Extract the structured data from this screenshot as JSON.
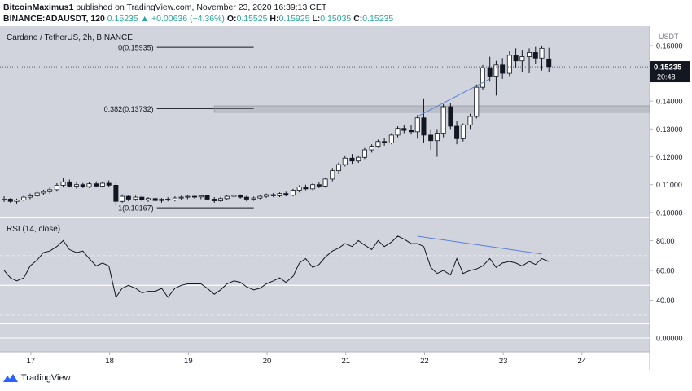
{
  "header": {
    "author": "BitcoinMaximus1",
    "published_text": "published on TradingView.com, November 23, 2020 16:39:13 CET",
    "symbol": "BINANCE:ADAUSDT, 120",
    "price": "0.15235",
    "arrow": "▲",
    "change": "+0.00636 (+4.36%)",
    "o_label": "O:",
    "o_value": "0.15525",
    "h_label": "H:",
    "h_value": "0.15925",
    "l_label": "L:",
    "l_value": "0.15035",
    "c_label": "C:",
    "c_value": "0.15235"
  },
  "footer": {
    "brand": "TradingView"
  },
  "colors": {
    "panel_bg": "#d1d4dc",
    "candle_up": "#ffffff",
    "candle_down": "#131722",
    "trend": "#5b7fd6",
    "rsi_line": "#131722"
  },
  "chart_data": [
    {
      "type": "candlestick",
      "title": "Cardano / TetherUS, 2h, BINANCE",
      "price_axis": {
        "label": "USDT",
        "ticks": [
          "0.16000",
          "0.15000",
          "0.14000",
          "0.13000",
          "0.12000",
          "0.11000",
          "0.10000"
        ],
        "ylim": [
          0.0985,
          0.167
        ]
      },
      "x_ticks": [
        "17",
        "18",
        "19",
        "20",
        "21",
        "22",
        "23",
        "24"
      ],
      "last_price": "0.15235",
      "countdown": "20:48",
      "fib_levels": [
        {
          "label": "0(0.15935)",
          "value": 0.15935
        },
        {
          "label": "0.382(0.13732)",
          "value": 0.13732
        },
        {
          "label": "1(0.10167)",
          "value": 0.10167
        }
      ],
      "candles": [
        {
          "x": 16.66,
          "o": 0.1045,
          "h": 0.1058,
          "l": 0.1038,
          "c": 0.1048
        },
        {
          "x": 16.74,
          "o": 0.1048,
          "h": 0.1052,
          "l": 0.1035,
          "c": 0.104
        },
        {
          "x": 16.82,
          "o": 0.104,
          "h": 0.105,
          "l": 0.1032,
          "c": 0.1045
        },
        {
          "x": 16.91,
          "o": 0.1045,
          "h": 0.1062,
          "l": 0.104,
          "c": 0.1055
        },
        {
          "x": 16.99,
          "o": 0.1055,
          "h": 0.1068,
          "l": 0.1048,
          "c": 0.106
        },
        {
          "x": 17.08,
          "o": 0.106,
          "h": 0.1078,
          "l": 0.1055,
          "c": 0.107
        },
        {
          "x": 17.16,
          "o": 0.107,
          "h": 0.1082,
          "l": 0.1062,
          "c": 0.1075
        },
        {
          "x": 17.24,
          "o": 0.1075,
          "h": 0.109,
          "l": 0.1068,
          "c": 0.1082
        },
        {
          "x": 17.33,
          "o": 0.1082,
          "h": 0.1105,
          "l": 0.1075,
          "c": 0.1098
        },
        {
          "x": 17.41,
          "o": 0.1098,
          "h": 0.1125,
          "l": 0.109,
          "c": 0.111
        },
        {
          "x": 17.49,
          "o": 0.111,
          "h": 0.1118,
          "l": 0.109,
          "c": 0.1095
        },
        {
          "x": 17.58,
          "o": 0.1095,
          "h": 0.1108,
          "l": 0.1085,
          "c": 0.11
        },
        {
          "x": 17.66,
          "o": 0.11,
          "h": 0.1106,
          "l": 0.1088,
          "c": 0.1093
        },
        {
          "x": 17.74,
          "o": 0.1093,
          "h": 0.111,
          "l": 0.1088,
          "c": 0.1103
        },
        {
          "x": 17.83,
          "o": 0.1103,
          "h": 0.1112,
          "l": 0.109,
          "c": 0.1095
        },
        {
          "x": 17.91,
          "o": 0.1095,
          "h": 0.1112,
          "l": 0.109,
          "c": 0.1105
        },
        {
          "x": 17.99,
          "o": 0.1105,
          "h": 0.1115,
          "l": 0.109,
          "c": 0.1098
        },
        {
          "x": 18.08,
          "o": 0.1098,
          "h": 0.1108,
          "l": 0.1025,
          "c": 0.104
        },
        {
          "x": 18.16,
          "o": 0.104,
          "h": 0.1065,
          "l": 0.1035,
          "c": 0.1058
        },
        {
          "x": 18.24,
          "o": 0.1058,
          "h": 0.1062,
          "l": 0.104,
          "c": 0.1048
        },
        {
          "x": 18.33,
          "o": 0.1048,
          "h": 0.106,
          "l": 0.1042,
          "c": 0.1055
        },
        {
          "x": 18.41,
          "o": 0.1055,
          "h": 0.106,
          "l": 0.104,
          "c": 0.1045
        },
        {
          "x": 18.49,
          "o": 0.1045,
          "h": 0.1055,
          "l": 0.1038,
          "c": 0.105
        },
        {
          "x": 18.58,
          "o": 0.105,
          "h": 0.1055,
          "l": 0.104,
          "c": 0.1043
        },
        {
          "x": 18.66,
          "o": 0.1043,
          "h": 0.1052,
          "l": 0.1035,
          "c": 0.1048
        },
        {
          "x": 18.74,
          "o": 0.1048,
          "h": 0.1055,
          "l": 0.104,
          "c": 0.1045
        },
        {
          "x": 18.83,
          "o": 0.1045,
          "h": 0.1058,
          "l": 0.104,
          "c": 0.1052
        },
        {
          "x": 18.91,
          "o": 0.1052,
          "h": 0.106,
          "l": 0.1045,
          "c": 0.1055
        },
        {
          "x": 18.99,
          "o": 0.1055,
          "h": 0.1062,
          "l": 0.1048,
          "c": 0.1058
        },
        {
          "x": 19.08,
          "o": 0.1058,
          "h": 0.1064,
          "l": 0.105,
          "c": 0.1056
        },
        {
          "x": 19.16,
          "o": 0.1056,
          "h": 0.1063,
          "l": 0.1048,
          "c": 0.106
        },
        {
          "x": 19.24,
          "o": 0.106,
          "h": 0.1063,
          "l": 0.1045,
          "c": 0.1048
        },
        {
          "x": 19.33,
          "o": 0.1048,
          "h": 0.1055,
          "l": 0.1035,
          "c": 0.1042
        },
        {
          "x": 19.41,
          "o": 0.1042,
          "h": 0.1056,
          "l": 0.1038,
          "c": 0.105
        },
        {
          "x": 19.49,
          "o": 0.105,
          "h": 0.1064,
          "l": 0.1045,
          "c": 0.1058
        },
        {
          "x": 19.58,
          "o": 0.1058,
          "h": 0.1068,
          "l": 0.1052,
          "c": 0.1062
        },
        {
          "x": 19.66,
          "o": 0.1062,
          "h": 0.1065,
          "l": 0.105,
          "c": 0.1055
        },
        {
          "x": 19.74,
          "o": 0.1055,
          "h": 0.106,
          "l": 0.104,
          "c": 0.1048
        },
        {
          "x": 19.83,
          "o": 0.1048,
          "h": 0.1057,
          "l": 0.1042,
          "c": 0.1052
        },
        {
          "x": 19.91,
          "o": 0.1052,
          "h": 0.1062,
          "l": 0.1048,
          "c": 0.1058
        },
        {
          "x": 19.99,
          "o": 0.1058,
          "h": 0.1068,
          "l": 0.1052,
          "c": 0.1064
        },
        {
          "x": 20.08,
          "o": 0.1064,
          "h": 0.107,
          "l": 0.1055,
          "c": 0.106
        },
        {
          "x": 20.16,
          "o": 0.106,
          "h": 0.1072,
          "l": 0.1055,
          "c": 0.1068
        },
        {
          "x": 20.24,
          "o": 0.1068,
          "h": 0.1075,
          "l": 0.1058,
          "c": 0.1062
        },
        {
          "x": 20.33,
          "o": 0.1062,
          "h": 0.1085,
          "l": 0.1058,
          "c": 0.108
        },
        {
          "x": 20.41,
          "o": 0.108,
          "h": 0.1098,
          "l": 0.1072,
          "c": 0.1092
        },
        {
          "x": 20.49,
          "o": 0.1092,
          "h": 0.11,
          "l": 0.108,
          "c": 0.1085
        },
        {
          "x": 20.58,
          "o": 0.1085,
          "h": 0.1105,
          "l": 0.108,
          "c": 0.11
        },
        {
          "x": 20.66,
          "o": 0.11,
          "h": 0.1108,
          "l": 0.1088,
          "c": 0.1095
        },
        {
          "x": 20.74,
          "o": 0.1095,
          "h": 0.1125,
          "l": 0.109,
          "c": 0.112
        },
        {
          "x": 20.83,
          "o": 0.112,
          "h": 0.116,
          "l": 0.1112,
          "c": 0.115
        },
        {
          "x": 20.91,
          "o": 0.115,
          "h": 0.118,
          "l": 0.114,
          "c": 0.1172
        },
        {
          "x": 20.99,
          "o": 0.1172,
          "h": 0.1205,
          "l": 0.1165,
          "c": 0.1195
        },
        {
          "x": 21.08,
          "o": 0.1195,
          "h": 0.121,
          "l": 0.1175,
          "c": 0.1185
        },
        {
          "x": 21.16,
          "o": 0.1185,
          "h": 0.1205,
          "l": 0.1178,
          "c": 0.1198
        },
        {
          "x": 21.24,
          "o": 0.1198,
          "h": 0.1232,
          "l": 0.1192,
          "c": 0.1225
        },
        {
          "x": 21.33,
          "o": 0.1225,
          "h": 0.1245,
          "l": 0.1215,
          "c": 0.1238
        },
        {
          "x": 21.41,
          "o": 0.1238,
          "h": 0.1262,
          "l": 0.1232,
          "c": 0.1255
        },
        {
          "x": 21.49,
          "o": 0.1255,
          "h": 0.1268,
          "l": 0.124,
          "c": 0.125
        },
        {
          "x": 21.58,
          "o": 0.125,
          "h": 0.1285,
          "l": 0.1245,
          "c": 0.1278
        },
        {
          "x": 21.66,
          "o": 0.1278,
          "h": 0.131,
          "l": 0.127,
          "c": 0.1302
        },
        {
          "x": 21.74,
          "o": 0.1302,
          "h": 0.1315,
          "l": 0.1285,
          "c": 0.1295
        },
        {
          "x": 21.83,
          "o": 0.1295,
          "h": 0.1315,
          "l": 0.128,
          "c": 0.129
        },
        {
          "x": 21.91,
          "o": 0.129,
          "h": 0.135,
          "l": 0.1265,
          "c": 0.134
        },
        {
          "x": 21.99,
          "o": 0.134,
          "h": 0.141,
          "l": 0.125,
          "c": 0.1278
        },
        {
          "x": 22.08,
          "o": 0.1278,
          "h": 0.13,
          "l": 0.1225,
          "c": 0.1258
        },
        {
          "x": 22.16,
          "o": 0.1258,
          "h": 0.13,
          "l": 0.12,
          "c": 0.1285
        },
        {
          "x": 22.24,
          "o": 0.1285,
          "h": 0.139,
          "l": 0.127,
          "c": 0.138
        },
        {
          "x": 22.33,
          "o": 0.138,
          "h": 0.1395,
          "l": 0.13,
          "c": 0.131
        },
        {
          "x": 22.41,
          "o": 0.131,
          "h": 0.133,
          "l": 0.1245,
          "c": 0.1265
        },
        {
          "x": 22.49,
          "o": 0.1265,
          "h": 0.132,
          "l": 0.1255,
          "c": 0.1315
        },
        {
          "x": 22.58,
          "o": 0.1315,
          "h": 0.1355,
          "l": 0.13,
          "c": 0.1345
        },
        {
          "x": 22.66,
          "o": 0.1345,
          "h": 0.146,
          "l": 0.1338,
          "c": 0.145
        },
        {
          "x": 22.74,
          "o": 0.145,
          "h": 0.153,
          "l": 0.144,
          "c": 0.152
        },
        {
          "x": 22.83,
          "o": 0.152,
          "h": 0.156,
          "l": 0.147,
          "c": 0.149
        },
        {
          "x": 22.91,
          "o": 0.149,
          "h": 0.1545,
          "l": 0.142,
          "c": 0.153
        },
        {
          "x": 22.99,
          "o": 0.153,
          "h": 0.1555,
          "l": 0.148,
          "c": 0.15
        },
        {
          "x": 23.08,
          "o": 0.15,
          "h": 0.158,
          "l": 0.149,
          "c": 0.1565
        },
        {
          "x": 23.16,
          "o": 0.1565,
          "h": 0.159,
          "l": 0.152,
          "c": 0.1545
        },
        {
          "x": 23.24,
          "o": 0.1545,
          "h": 0.1585,
          "l": 0.1505,
          "c": 0.156
        },
        {
          "x": 23.33,
          "o": 0.156,
          "h": 0.159,
          "l": 0.15,
          "c": 0.1575
        },
        {
          "x": 23.41,
          "o": 0.1575,
          "h": 0.1595,
          "l": 0.1535,
          "c": 0.1555
        },
        {
          "x": 23.49,
          "o": 0.1555,
          "h": 0.16,
          "l": 0.151,
          "c": 0.159
        },
        {
          "x": 23.58,
          "o": 0.1552,
          "h": 0.1592,
          "l": 0.1503,
          "c": 0.1524
        }
      ],
      "trend_line": {
        "x": [
          21.91,
          22.83
        ],
        "y": [
          0.1345,
          0.148
        ]
      }
    },
    {
      "type": "line",
      "title": "RSI (14, close)",
      "y_ticks": [
        "80.00",
        "60.00",
        "40.00"
      ],
      "ylim": [
        25,
        95
      ],
      "bands": [
        70,
        50,
        30
      ],
      "x": [
        16.66,
        16.74,
        16.82,
        16.91,
        16.99,
        17.08,
        17.16,
        17.24,
        17.33,
        17.41,
        17.49,
        17.58,
        17.66,
        17.74,
        17.83,
        17.91,
        17.99,
        18.08,
        18.16,
        18.24,
        18.33,
        18.41,
        18.49,
        18.58,
        18.66,
        18.74,
        18.83,
        18.91,
        18.99,
        19.08,
        19.16,
        19.24,
        19.33,
        19.41,
        19.49,
        19.58,
        19.66,
        19.74,
        19.83,
        19.91,
        19.99,
        20.08,
        20.16,
        20.24,
        20.33,
        20.41,
        20.49,
        20.58,
        20.66,
        20.74,
        20.83,
        20.91,
        20.99,
        21.08,
        21.16,
        21.24,
        21.33,
        21.41,
        21.49,
        21.58,
        21.66,
        21.74,
        21.83,
        21.91,
        21.99,
        22.08,
        22.16,
        22.24,
        22.33,
        22.41,
        22.49,
        22.58,
        22.66,
        22.74,
        22.83,
        22.91,
        22.99,
        23.08,
        23.16,
        23.24,
        23.33,
        23.41,
        23.49,
        23.58
      ],
      "values": [
        60,
        55,
        53,
        55,
        63,
        67,
        72,
        73,
        76,
        80,
        74,
        72,
        73,
        68,
        63,
        65,
        63,
        42,
        48,
        50,
        48,
        45,
        46,
        46,
        48,
        42,
        48,
        50,
        51,
        51,
        51,
        48,
        44,
        47,
        51,
        53,
        52,
        49,
        47,
        48,
        51,
        53,
        55,
        52,
        56,
        65,
        68,
        62,
        64,
        69,
        73,
        75,
        78,
        76,
        80,
        77,
        74,
        80,
        76,
        79,
        83,
        81,
        78,
        78,
        76,
        62,
        58,
        60,
        57,
        68,
        58,
        60,
        61,
        63,
        68,
        62,
        65,
        66,
        65,
        63,
        66,
        64,
        68,
        66
      ],
      "trend_line": {
        "x": [
          21.91,
          23.49
        ],
        "y": [
          83,
          71
        ]
      }
    },
    {
      "type": "line",
      "title": "",
      "y_ticks": [
        "0.00000"
      ],
      "values": []
    }
  ]
}
